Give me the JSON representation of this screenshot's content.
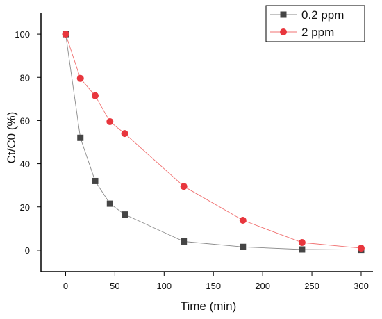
{
  "chart_data": {
    "type": "line",
    "title": "",
    "xlabel": "Time (min)",
    "ylabel": "Ct/C0 (%)",
    "xlim": [
      -25,
      312
    ],
    "ylim": [
      -10,
      110
    ],
    "x_ticks": [
      0,
      50,
      100,
      150,
      200,
      250,
      300
    ],
    "y_ticks": [
      0,
      20,
      40,
      60,
      80,
      100
    ],
    "grid": false,
    "legend_position": "top-right",
    "x": [
      0,
      15,
      30,
      45,
      60,
      120,
      180,
      240,
      300
    ],
    "series": [
      {
        "name": "0.2 ppm",
        "marker": "square",
        "color": "#454545",
        "line_color": "#8a8a8a",
        "values": [
          100,
          52,
          32,
          21.5,
          16.5,
          4,
          1.5,
          0.3,
          0.1
        ]
      },
      {
        "name": "2 ppm",
        "marker": "circle",
        "color": "#e8363d",
        "line_color": "#f07070",
        "values": [
          100,
          79.5,
          71.5,
          59.5,
          54,
          29.5,
          13.8,
          3.5,
          0.9
        ]
      }
    ]
  }
}
